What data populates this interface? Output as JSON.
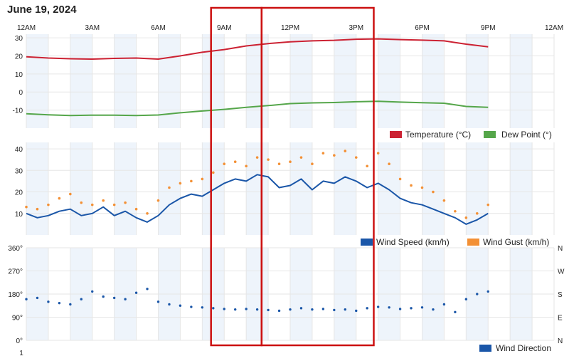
{
  "page": {
    "title": "June 19, 2024"
  },
  "colors": {
    "temperature": "#cc2233",
    "dew_point": "#55a64a",
    "wind_speed": "#1a56a8",
    "wind_gust": "#f39035",
    "wind_direction": "#1a56a8",
    "band": "#eef4fb",
    "grid": "#e6e6e6",
    "highlight": "#cc1111"
  },
  "highlights": [
    {
      "name": "highlight-box-morning",
      "from_hour": 8.4,
      "to_hour": 10.7
    },
    {
      "name": "highlight-box-afternoon",
      "from_hour": 10.7,
      "to_hour": 15.8
    }
  ],
  "chart_data": [
    {
      "type": "line",
      "panel": "temperature",
      "x_ticks": [
        "12AM",
        "3AM",
        "6AM",
        "9AM",
        "12PM",
        "3PM",
        "6PM",
        "9PM",
        "12AM"
      ],
      "ylim": [
        -20,
        32
      ],
      "y_ticks": [
        "30",
        "20",
        "10",
        "0",
        "-10"
      ],
      "y_tick_values": [
        30,
        20,
        10,
        0,
        -10
      ],
      "grid": true,
      "legend": "bottom-right",
      "series": [
        {
          "name": "Temperature (°C)",
          "color": "#cc2233",
          "x": [
            0,
            1,
            2,
            3,
            4,
            5,
            6,
            7,
            8,
            9,
            10,
            11,
            12,
            13,
            14,
            15,
            16,
            17,
            18,
            19,
            20,
            21
          ],
          "values": [
            19.5,
            18.8,
            18.4,
            18.2,
            18.6,
            18.8,
            18.2,
            20,
            22,
            23.5,
            25.5,
            26.8,
            27.8,
            28.3,
            28.6,
            29.2,
            29.4,
            29,
            28.7,
            28.3,
            26.5,
            25
          ]
        },
        {
          "name": "Dew Point (°)",
          "color": "#55a64a",
          "x": [
            0,
            1,
            2,
            3,
            4,
            5,
            6,
            7,
            8,
            9,
            10,
            11,
            12,
            13,
            14,
            15,
            16,
            17,
            18,
            19,
            20,
            21
          ],
          "values": [
            -12,
            -12.6,
            -13,
            -12.8,
            -12.8,
            -13,
            -12.7,
            -11.5,
            -10.5,
            -9.6,
            -8.5,
            -7.5,
            -6.4,
            -6,
            -5.8,
            -5.4,
            -5.1,
            -5.6,
            -5.9,
            -6.2,
            -8,
            -8.5
          ]
        }
      ]
    },
    {
      "type": "line",
      "panel": "wind",
      "x_ticks": [
        "12AM",
        "3AM",
        "6AM",
        "9AM",
        "12PM",
        "3PM",
        "6PM",
        "9PM",
        "12AM"
      ],
      "ylim": [
        0,
        43
      ],
      "y_ticks": [
        "40",
        "30",
        "20",
        "10"
      ],
      "y_tick_values": [
        40,
        30,
        20,
        10
      ],
      "grid": true,
      "legend": "bottom-right",
      "series": [
        {
          "name": "Wind Speed (km/h)",
          "color": "#1a56a8",
          "x": [
            0,
            0.5,
            1,
            1.5,
            2,
            2.5,
            3,
            3.5,
            4,
            4.5,
            5,
            5.5,
            6,
            6.5,
            7,
            7.5,
            8,
            8.5,
            9,
            9.5,
            10,
            10.5,
            11,
            11.5,
            12,
            12.5,
            13,
            13.5,
            14,
            14.5,
            15,
            15.5,
            16,
            16.5,
            17,
            17.5,
            18,
            18.5,
            19,
            19.5,
            20,
            20.5,
            21
          ],
          "values": [
            10,
            8,
            9,
            11,
            12,
            9,
            10,
            13,
            9,
            11,
            8,
            6,
            9,
            14,
            17,
            19,
            18,
            21,
            24,
            26,
            25,
            28,
            27,
            22,
            23,
            26,
            21,
            25,
            24,
            27,
            25,
            22,
            24,
            21,
            17,
            15,
            14,
            12,
            10,
            8,
            5,
            7,
            10
          ]
        },
        {
          "name": "Wind Gust (km/h)",
          "color": "#f39035",
          "x": [
            0,
            0.5,
            1,
            1.5,
            2,
            2.5,
            3,
            3.5,
            4,
            4.5,
            5,
            5.5,
            6,
            6.5,
            7,
            7.5,
            8,
            8.5,
            9,
            9.5,
            10,
            10.5,
            11,
            11.5,
            12,
            12.5,
            13,
            13.5,
            14,
            14.5,
            15,
            15.5,
            16,
            16.5,
            17,
            17.5,
            18,
            18.5,
            19,
            19.5,
            20,
            20.5,
            21
          ],
          "values": [
            13,
            12,
            14,
            17,
            19,
            15,
            14,
            16,
            14,
            15,
            12,
            10,
            16,
            22,
            24,
            25,
            26,
            29,
            33,
            34,
            32,
            36,
            35,
            33,
            34,
            36,
            33,
            38,
            37,
            39,
            36,
            32,
            38,
            33,
            26,
            23,
            22,
            20,
            16,
            11,
            8,
            10,
            14
          ]
        }
      ]
    },
    {
      "type": "scatter",
      "panel": "wind-direction",
      "x_ticks": [
        "12AM",
        "3AM",
        "6AM",
        "9AM",
        "12PM",
        "3PM",
        "6PM",
        "9PM",
        "12AM"
      ],
      "ylim": [
        0,
        360
      ],
      "y_ticks": [
        "360°",
        "270°",
        "180°",
        "90°",
        "0°"
      ],
      "y_tick_values": [
        360,
        270,
        180,
        90,
        0
      ],
      "y_ticks_right": [
        "N",
        "W",
        "S",
        "E",
        "N"
      ],
      "grid": true,
      "legend": "bottom-right",
      "series": [
        {
          "name": "Wind Direction",
          "color": "#1a56a8",
          "x": [
            0,
            0.5,
            1,
            1.5,
            2,
            2.5,
            3,
            3.5,
            4,
            4.5,
            5,
            5.5,
            6,
            6.5,
            7,
            7.5,
            8,
            8.5,
            9,
            9.5,
            10,
            10.5,
            11,
            11.5,
            12,
            12.5,
            13,
            13.5,
            14,
            14.5,
            15,
            15.5,
            16,
            16.5,
            17,
            17.5,
            18,
            18.5,
            19,
            19.5,
            20,
            20.5,
            21
          ],
          "values": [
            160,
            165,
            150,
            145,
            140,
            160,
            190,
            170,
            165,
            160,
            185,
            200,
            150,
            140,
            135,
            130,
            128,
            125,
            122,
            120,
            122,
            120,
            118,
            115,
            120,
            125,
            120,
            122,
            118,
            120,
            115,
            125,
            130,
            128,
            122,
            125,
            128,
            120,
            140,
            110,
            160,
            180,
            190
          ]
        }
      ]
    }
  ],
  "final_tick": "1"
}
